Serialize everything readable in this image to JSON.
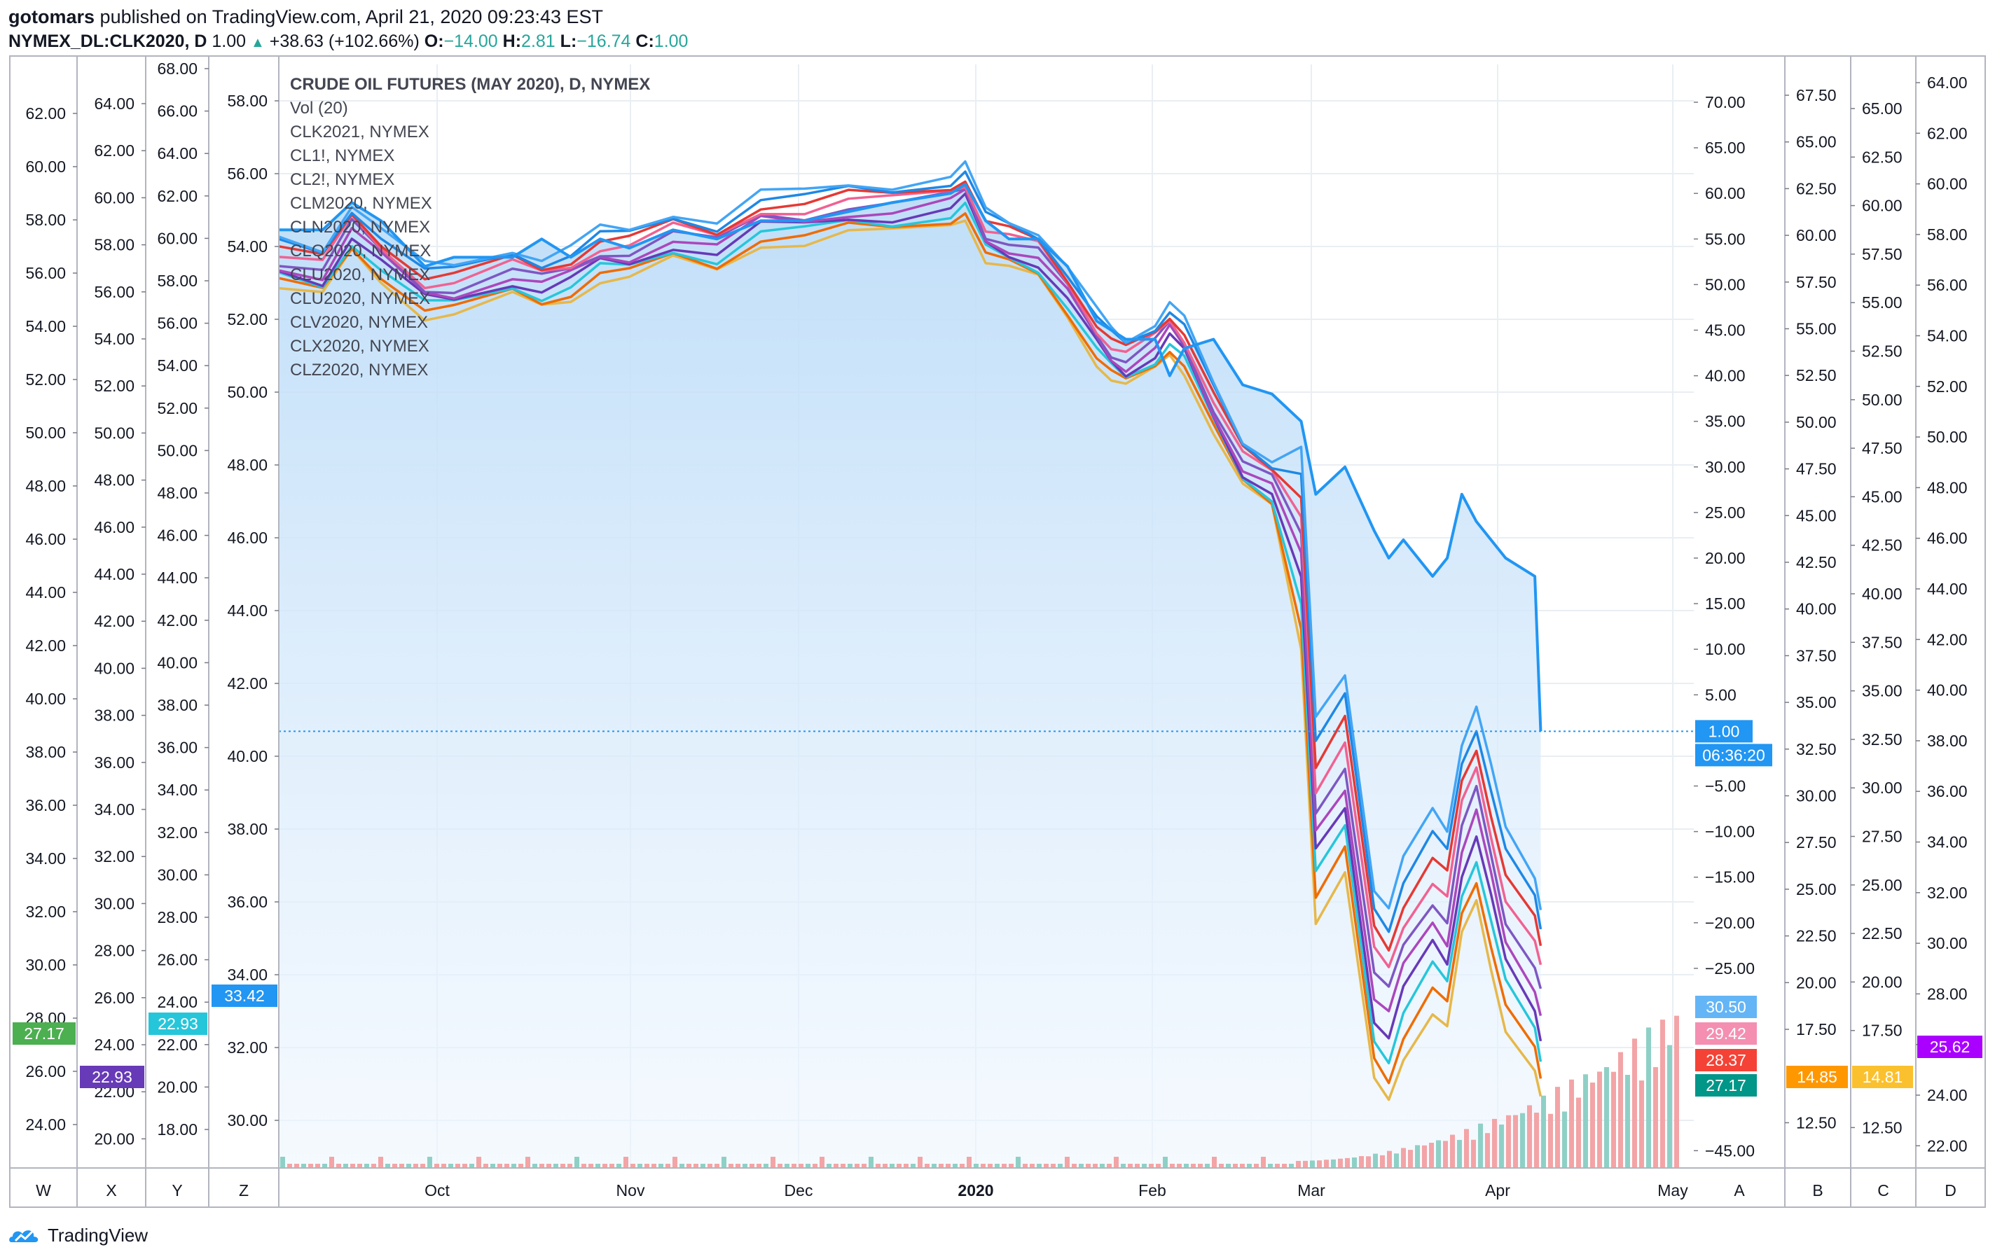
{
  "header": {
    "publisher": "gotomars",
    "published_text": "published on TradingView.com, April 21, 2020 09:23:43 EST",
    "symbol": "NYMEX_DL:CLK2020, D",
    "last": "1.00",
    "change": "+38.63 (+102.66%)",
    "o_label": "O:",
    "o_value": "−14.00",
    "h_label": "H:",
    "h_value": "2.81",
    "l_label": "L:",
    "l_value": "−16.74",
    "c_label": "C:",
    "c_value": "1.00"
  },
  "footer": {
    "brand": "TradingView"
  },
  "legend": [
    "CRUDE OIL FUTURES (MAY 2020), D, NYMEX",
    "Vol (20)",
    "CLK2021, NYMEX",
    "CL1!, NYMEX",
    "CL2!, NYMEX",
    "CLM2020, NYMEX",
    "CLN2020, NYMEX",
    "CLQ2020, NYMEX",
    "CLU2020, NYMEX",
    "CLU2020, NYMEX",
    "CLV2020, NYMEX",
    "CLX2020, NYMEX",
    "CLZ2020, NYMEX"
  ],
  "colors": {
    "main": "#2196f3",
    "fill": "#cfe6fb",
    "grid": "#e9eef3",
    "vol_up": "#8fd0c6",
    "vol_down": "#f3a4a6",
    "axis_text": "#131722",
    "border": "#b2b5be"
  },
  "chart_data": {
    "type": "line",
    "title": "CRUDE OIL FUTURES (MAY 2020), D, NYMEX",
    "x_labels": [
      "Oct",
      "Nov",
      "Dec",
      "2020",
      "Feb",
      "Mar",
      "Apr",
      "May"
    ],
    "series": [
      {
        "name": "CLK2020 (May 2020) - main",
        "color": "#2196f3",
        "axis": "A",
        "values": [
          [
            0,
            56
          ],
          [
            15,
            56
          ],
          [
            25,
            59
          ],
          [
            35,
            57
          ],
          [
            50,
            52
          ],
          [
            60,
            53
          ],
          [
            80,
            53
          ],
          [
            90,
            55
          ],
          [
            100,
            53
          ],
          [
            110,
            55
          ],
          [
            120,
            54
          ],
          [
            135,
            56
          ],
          [
            150,
            55
          ],
          [
            165,
            57
          ],
          [
            180,
            57
          ],
          [
            195,
            58
          ],
          [
            210,
            59
          ],
          [
            230,
            60
          ],
          [
            235,
            61
          ],
          [
            242,
            57
          ],
          [
            250,
            55
          ],
          [
            260,
            55
          ],
          [
            270,
            52
          ],
          [
            280,
            46
          ],
          [
            285,
            45
          ],
          [
            290,
            44
          ],
          [
            300,
            44
          ],
          [
            305,
            40
          ],
          [
            310,
            43
          ],
          [
            320,
            44
          ],
          [
            330,
            39
          ],
          [
            340,
            38
          ],
          [
            350,
            35
          ],
          [
            355,
            27
          ],
          [
            365,
            30
          ],
          [
            375,
            23
          ],
          [
            380,
            20
          ],
          [
            385,
            22
          ],
          [
            395,
            18
          ],
          [
            400,
            20
          ],
          [
            405,
            27
          ],
          [
            410,
            24
          ],
          [
            415,
            22
          ],
          [
            420,
            20
          ],
          [
            430,
            18
          ],
          [
            432,
            1
          ]
        ],
        "last": "1.00",
        "countdown": "06:36:20"
      }
    ],
    "secondary_series": [
      "CLK2021",
      "CL1!",
      "CL2!",
      "CLM2020",
      "CLN2020",
      "CLQ2020",
      "CLU2020",
      "CLV2020",
      "CLX2020",
      "CLZ2020"
    ],
    "axes": [
      {
        "id": "W",
        "position": "left-1",
        "ticks": [
          "62.00",
          "60.00",
          "58.00",
          "56.00",
          "54.00",
          "52.00",
          "50.00",
          "48.00",
          "46.00",
          "44.00",
          "42.00",
          "40.00",
          "38.00",
          "36.00",
          "34.00",
          "32.00",
          "30.00",
          "28.00",
          "26.00",
          "24.00"
        ],
        "label": {
          "value": "27.17",
          "color": "#4caf50"
        }
      },
      {
        "id": "X",
        "position": "left-2",
        "ticks": [
          "64.00",
          "62.00",
          "60.00",
          "58.00",
          "56.00",
          "54.00",
          "52.00",
          "50.00",
          "48.00",
          "46.00",
          "44.00",
          "42.00",
          "40.00",
          "38.00",
          "36.00",
          "34.00",
          "32.00",
          "30.00",
          "28.00",
          "26.00",
          "24.00",
          "22.00",
          "20.00"
        ],
        "label": {
          "value": "22.93",
          "color": "#673ab7"
        }
      },
      {
        "id": "Y",
        "position": "left-3",
        "ticks": [
          "68.00",
          "66.00",
          "64.00",
          "62.00",
          "60.00",
          "58.00",
          "56.00",
          "54.00",
          "52.00",
          "50.00",
          "48.00",
          "46.00",
          "44.00",
          "42.00",
          "40.00",
          "38.00",
          "36.00",
          "34.00",
          "32.00",
          "30.00",
          "28.00",
          "26.00",
          "24.00",
          "22.00",
          "20.00",
          "18.00"
        ],
        "label": {
          "value": "22.93",
          "color": "#26c6da"
        }
      },
      {
        "id": "Z",
        "position": "left-4",
        "ticks": [
          "58.00",
          "56.00",
          "54.00",
          "52.00",
          "50.00",
          "48.00",
          "46.00",
          "44.00",
          "42.00",
          "40.00",
          "38.00",
          "36.00",
          "34.00",
          "32.00",
          "30.00"
        ],
        "label": {
          "value": "33.42",
          "color": "#2196f3"
        }
      },
      {
        "id": "A",
        "position": "right-1",
        "ticks": [
          "70.00",
          "65.00",
          "60.00",
          "55.00",
          "50.00",
          "45.00",
          "40.00",
          "35.00",
          "30.00",
          "25.00",
          "20.00",
          "15.00",
          "10.00",
          "5.00",
          "",
          "−5.00",
          "−10.00",
          "−15.00",
          "−20.00",
          "−25.00",
          "",
          "",
          "",
          "−45.00"
        ],
        "labels": [
          {
            "value": "30.50",
            "color": "#64b5f6"
          },
          {
            "value": "29.42",
            "color": "#f48fb1"
          },
          {
            "value": "28.37",
            "color": "#f44336"
          },
          {
            "value": "27.17",
            "color": "#009688"
          }
        ]
      },
      {
        "id": "B",
        "position": "right-2",
        "ticks": [
          "67.50",
          "65.00",
          "62.50",
          "60.00",
          "57.50",
          "55.00",
          "52.50",
          "50.00",
          "47.50",
          "45.00",
          "42.50",
          "40.00",
          "37.50",
          "35.00",
          "32.50",
          "30.00",
          "27.50",
          "25.00",
          "22.50",
          "20.00",
          "17.50",
          "",
          "12.50"
        ],
        "label": {
          "value": "14.85",
          "color": "#ff9800"
        }
      },
      {
        "id": "C",
        "position": "right-3",
        "ticks": [
          "65.00",
          "62.50",
          "60.00",
          "57.50",
          "55.00",
          "52.50",
          "50.00",
          "47.50",
          "45.00",
          "42.50",
          "40.00",
          "37.50",
          "35.00",
          "32.50",
          "30.00",
          "27.50",
          "25.00",
          "22.50",
          "20.00",
          "17.50",
          "",
          "12.50"
        ],
        "label": {
          "value": "14.81",
          "color": "#fbc02d"
        }
      },
      {
        "id": "D",
        "position": "right-4",
        "ticks": [
          "64.00",
          "62.00",
          "60.00",
          "58.00",
          "56.00",
          "54.00",
          "52.00",
          "50.00",
          "48.00",
          "46.00",
          "44.00",
          "42.00",
          "40.00",
          "38.00",
          "36.00",
          "34.00",
          "32.00",
          "30.00",
          "28.00",
          "26.00",
          "24.00",
          "22.00"
        ],
        "label": {
          "value": "25.62",
          "color": "#aa00ff"
        }
      }
    ],
    "grid": true
  }
}
